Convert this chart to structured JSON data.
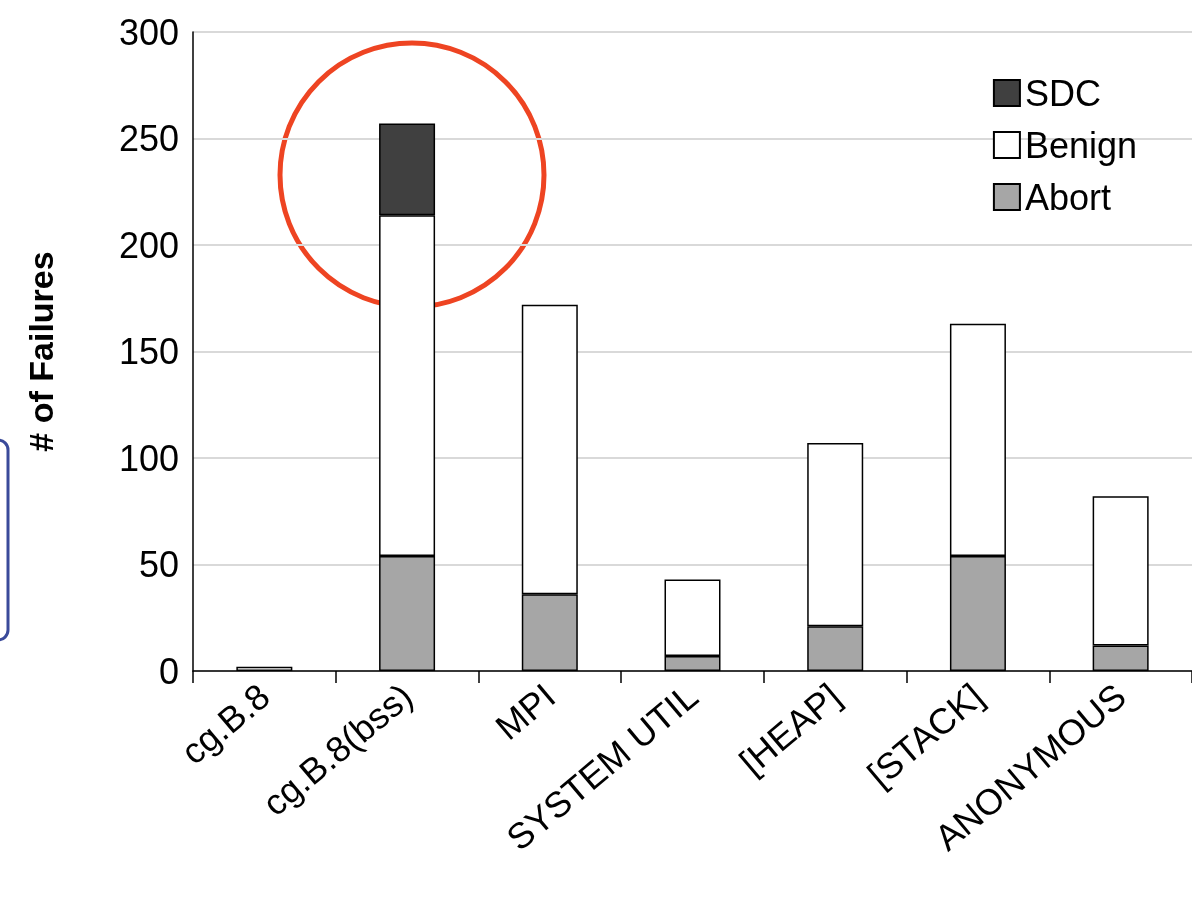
{
  "chart_data": {
    "type": "bar",
    "ylabel": "# of Failures",
    "stacked": true,
    "categories": [
      "cg.B.8",
      "cg.B.8(bss)",
      "MPI",
      "SYSTEM UTIL",
      "[HEAP]",
      "[STACK]",
      "ANONYMOUS"
    ],
    "series": [
      {
        "name": "Abort",
        "color": "#a6a6a6",
        "values": [
          null,
          54,
          36,
          7,
          21,
          54,
          12
        ]
      },
      {
        "name": "Benign",
        "color": "#ffffff",
        "values": [
          2,
          160,
          136,
          36,
          86,
          109,
          70
        ]
      },
      {
        "name": "SDC",
        "color": "#404040",
        "values": [
          null,
          43,
          null,
          null,
          null,
          null,
          null
        ]
      }
    ],
    "ylim": [
      0,
      300
    ],
    "yticks": [
      0,
      50,
      100,
      150,
      200,
      250,
      300
    ],
    "grid": "y",
    "legend": "top right"
  }
}
